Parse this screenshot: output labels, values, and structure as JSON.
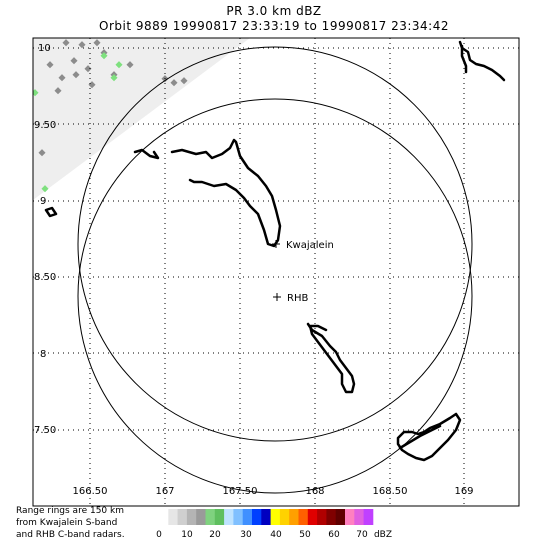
{
  "header": {
    "title": "PR  3.0 km dBZ",
    "subtitle": "Orbit 9889 19990817 23:33:19 to 19990817 23:34:42"
  },
  "map": {
    "y_ticks": [
      "10",
      "9.50",
      "9",
      "8.50",
      "8",
      "7.50"
    ],
    "x_ticks": [
      "166.50",
      "167",
      "167.50",
      "168",
      "168.50",
      "169"
    ],
    "labels": {
      "kwajalein": "Kwajalein",
      "rhb": "RHB"
    },
    "colors": {
      "coastline": "#000000",
      "range_ring": "#000000",
      "gray_echo": "#8c8c8c",
      "green_echo": "#7ee07e",
      "swath_shade": "#eeeeee"
    }
  },
  "footnote": {
    "line1": "Range rings are 150 km",
    "line2": "from Kwajalein S-band",
    "line3": "and RHB C-band radars."
  },
  "colorbar": {
    "colors": [
      "#ffffff",
      "#e6e6e6",
      "#cfcfcf",
      "#b4b4b4",
      "#9a9a9a",
      "#7fd27f",
      "#5fbf5f",
      "#bfe3ff",
      "#80c0ff",
      "#4090ff",
      "#0040ff",
      "#0000c0",
      "#ffff00",
      "#ffd200",
      "#ffa000",
      "#ff6000",
      "#e00000",
      "#b00000",
      "#800000",
      "#600000",
      "#ff80c0",
      "#e060e0",
      "#c040ff"
    ],
    "labels": [
      "0",
      "10",
      "20",
      "30",
      "40",
      "50",
      "60",
      "70"
    ],
    "unit": "dBZ"
  }
}
